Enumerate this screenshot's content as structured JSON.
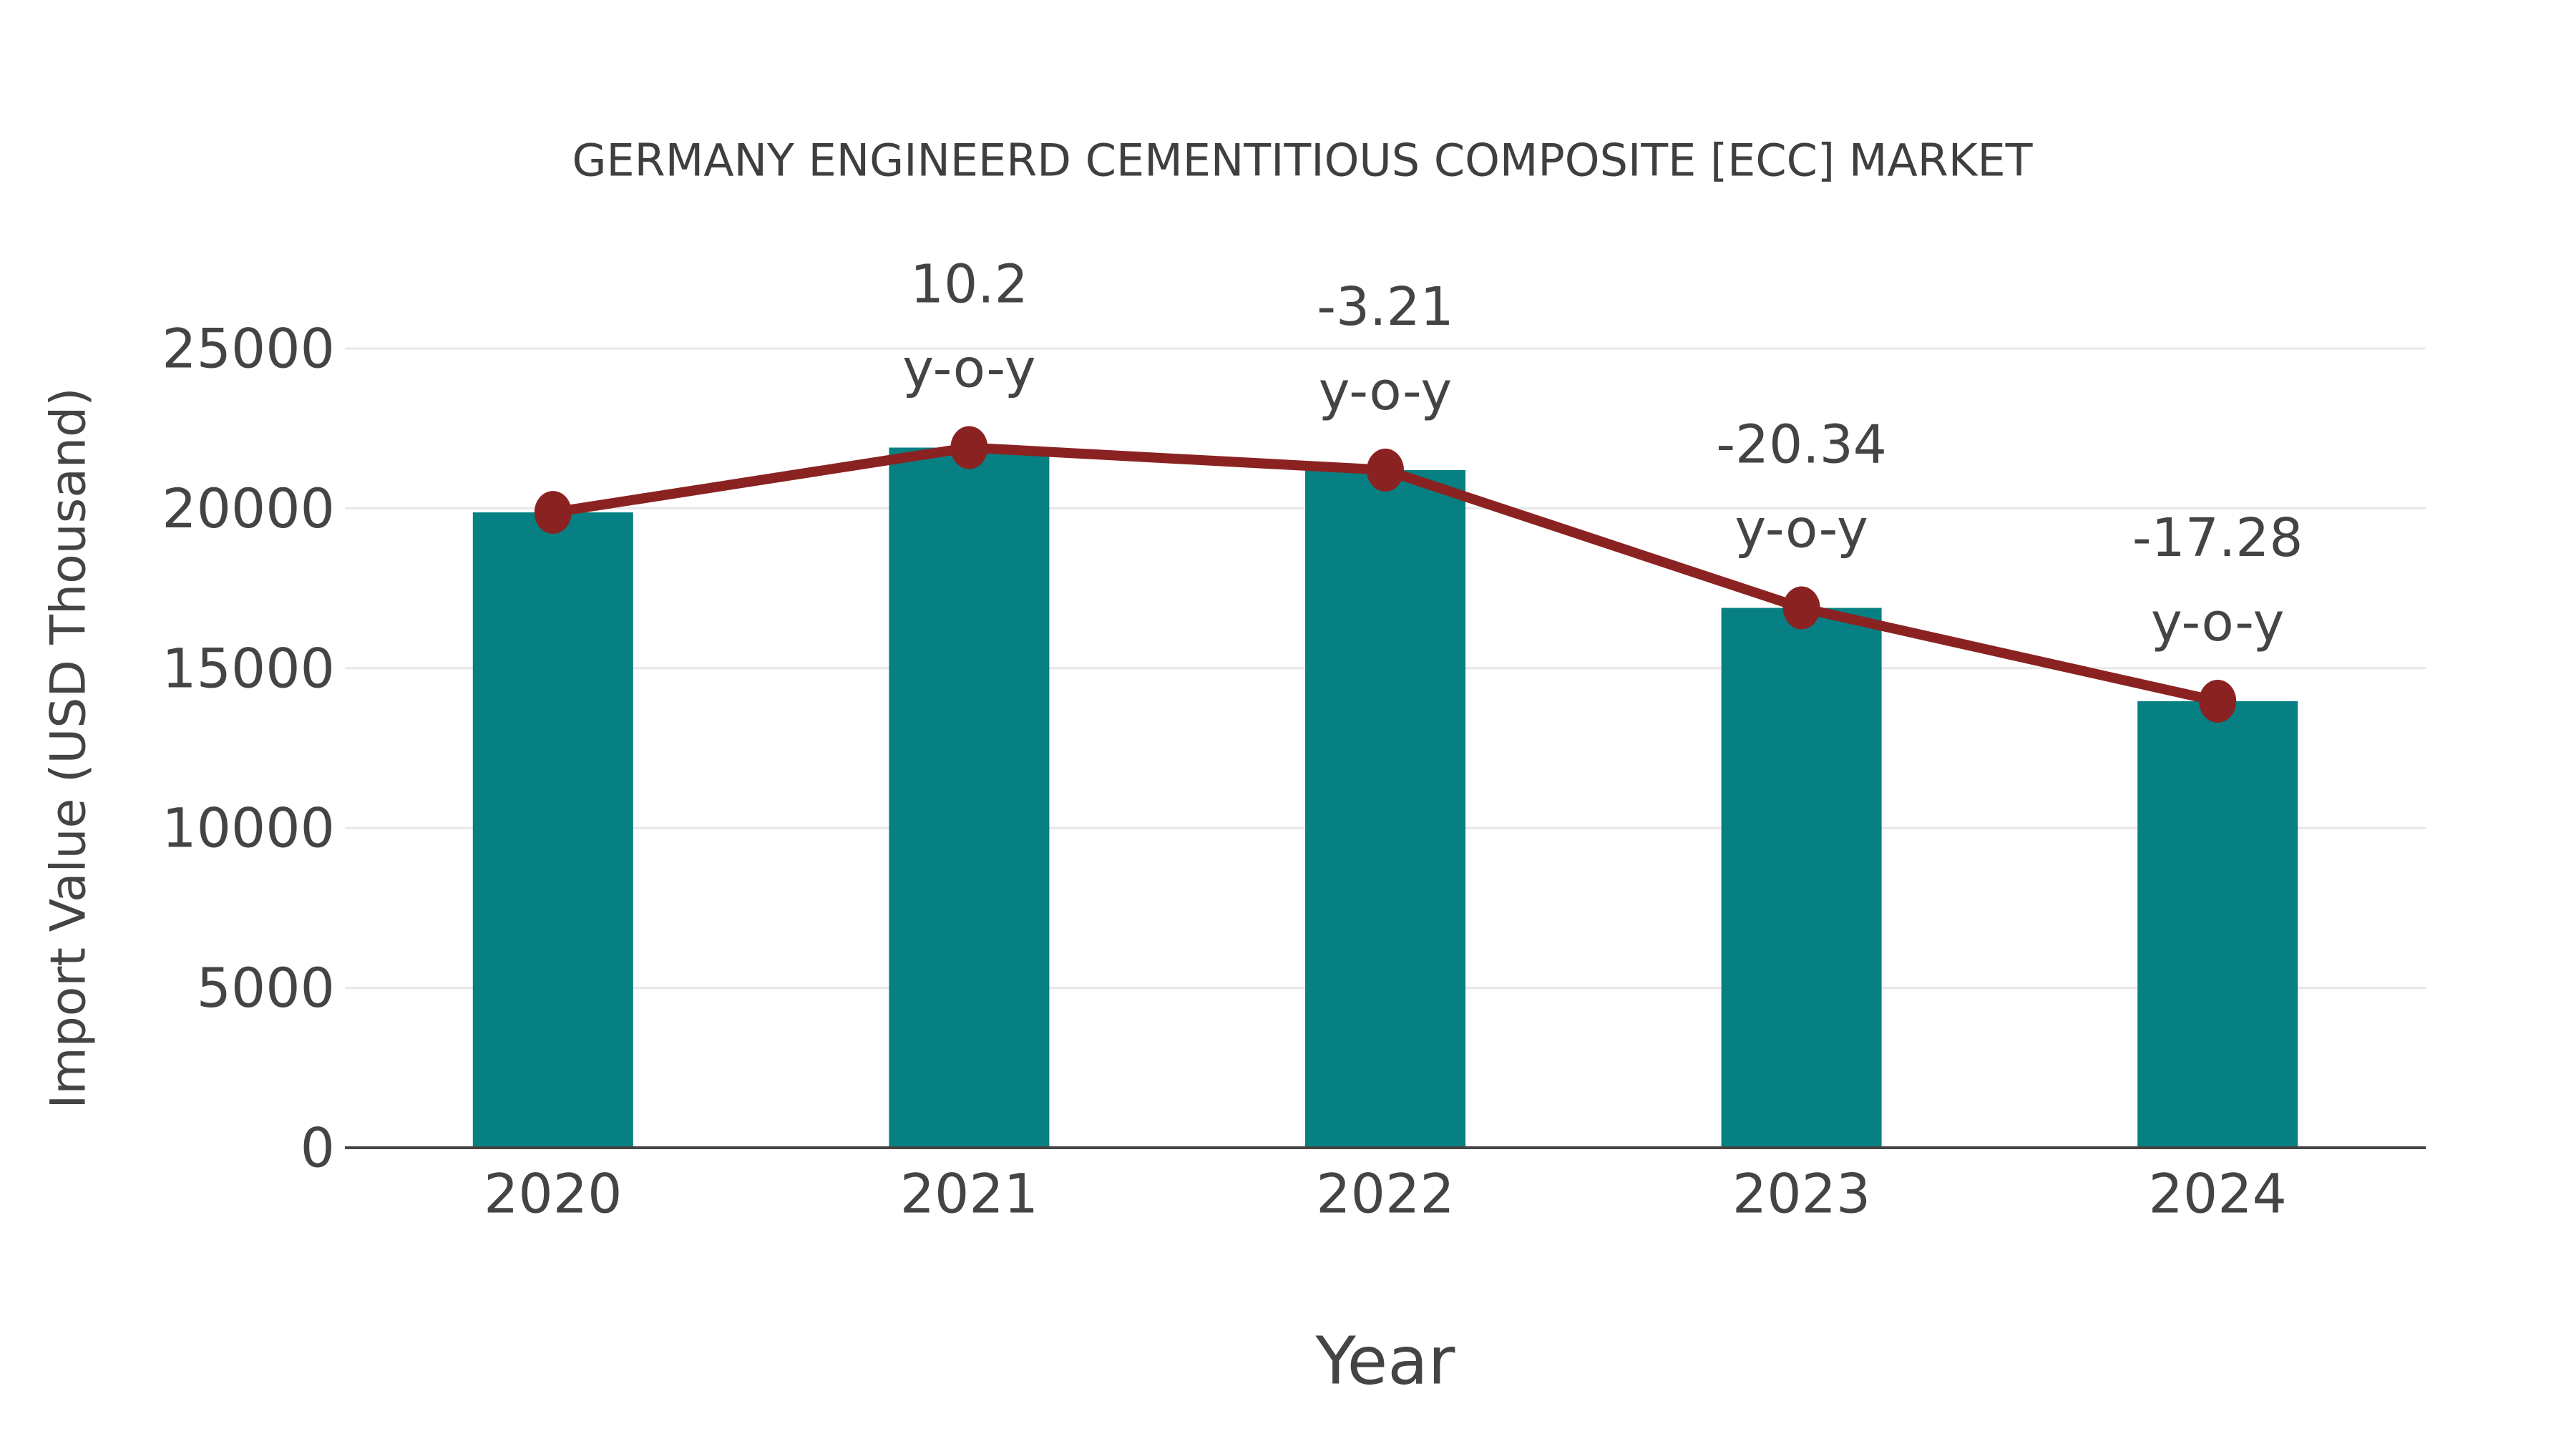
{
  "title": "GERMANY ENGINEERD CEMENTITIOUS COMPOSITE [ECC] MARKET",
  "chart_data": {
    "type": "bar",
    "subtype": "bar-with-line-overlay",
    "title": "GERMANY ENGINEERD CEMENTITIOUS COMPOSITE [ECC] MARKET",
    "xlabel": "Year",
    "ylabel": "Import Value (USD Thousand)",
    "categories": [
      "2020",
      "2021",
      "2022",
      "2023",
      "2024"
    ],
    "series": [
      {
        "name": "Import Value (bar)",
        "type": "bar",
        "values": [
          19873,
          21900,
          21197,
          16886,
          13967
        ]
      },
      {
        "name": "Import Value (line)",
        "type": "line",
        "values": [
          19873,
          21900,
          21197,
          16886,
          13967
        ]
      }
    ],
    "annotations": [
      {
        "category": "2021",
        "value_line": "10.2",
        "suffix_line": "y-o-y"
      },
      {
        "category": "2022",
        "value_line": "-3.21",
        "suffix_line": "y-o-y"
      },
      {
        "category": "2023",
        "value_line": "-20.34",
        "suffix_line": "y-o-y"
      },
      {
        "category": "2024",
        "value_line": "-17.28",
        "suffix_line": "y-o-y"
      }
    ],
    "yticks": [
      0,
      5000,
      10000,
      15000,
      20000,
      25000
    ],
    "ylim": [
      0,
      25000
    ],
    "grid": true,
    "legend_position": "none"
  },
  "colors": {
    "bar": "#068082",
    "line": "#8B2222",
    "marker": "#8B2222",
    "grid": "#e8e8e8",
    "axis_line": "#444444",
    "tick_text": "#444444",
    "annotation_text": "#444444",
    "title_text": "#3f3f3f",
    "background": "#ffffff"
  }
}
